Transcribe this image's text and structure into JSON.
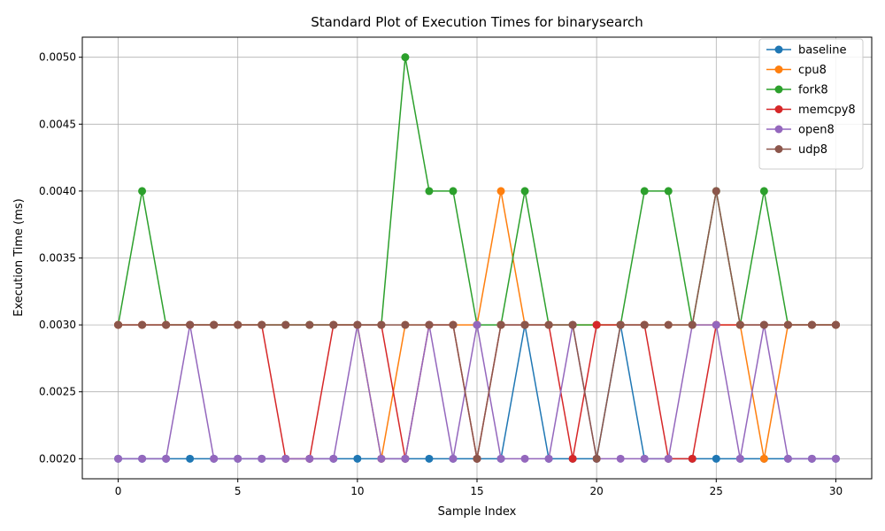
{
  "chart_data": {
    "type": "line",
    "title": "Standard Plot of Execution Times for binarysearch",
    "xlabel": "Sample Index",
    "ylabel": "Execution Time (ms)",
    "xlim": [
      -1.5,
      31.5
    ],
    "ylim": [
      0.00185,
      0.00515
    ],
    "xticks": [
      0,
      5,
      10,
      15,
      20,
      25,
      30
    ],
    "yticks": [
      0.002,
      0.0025,
      0.003,
      0.0035,
      0.004,
      0.0045,
      0.005
    ],
    "ytick_labels": [
      "0.0020",
      "0.0025",
      "0.0030",
      "0.0035",
      "0.0040",
      "0.0045",
      "0.0050"
    ],
    "grid": true,
    "legend_position": "top-right",
    "x": [
      0,
      1,
      2,
      3,
      4,
      5,
      6,
      7,
      8,
      9,
      10,
      11,
      12,
      13,
      14,
      15,
      16,
      17,
      18,
      19,
      20,
      21,
      22,
      23,
      24,
      25,
      26,
      27,
      28,
      29,
      30
    ],
    "series": [
      {
        "name": "baseline",
        "color": "#1f77b4",
        "marker": "circle",
        "values": [
          0.002,
          0.002,
          0.002,
          0.002,
          0.002,
          0.002,
          0.002,
          0.002,
          0.002,
          0.002,
          0.002,
          0.002,
          0.002,
          0.002,
          0.002,
          0.002,
          0.002,
          0.003,
          0.002,
          0.002,
          0.002,
          0.003,
          0.002,
          0.002,
          0.002,
          0.002,
          0.002,
          0.002,
          0.002,
          0.002,
          0.002
        ]
      },
      {
        "name": "cpu8",
        "color": "#ff7f0e",
        "marker": "circle",
        "values": [
          0.003,
          0.003,
          0.003,
          0.003,
          0.003,
          0.003,
          0.003,
          0.003,
          0.003,
          0.003,
          0.003,
          0.002,
          0.003,
          0.003,
          0.003,
          0.003,
          0.004,
          0.003,
          0.003,
          0.003,
          0.003,
          0.003,
          0.003,
          0.003,
          0.003,
          0.003,
          0.003,
          0.002,
          0.003,
          0.003,
          0.003
        ]
      },
      {
        "name": "fork8",
        "color": "#2ca02c",
        "marker": "circle",
        "values": [
          0.003,
          0.004,
          0.003,
          0.003,
          0.003,
          0.003,
          0.003,
          0.003,
          0.003,
          0.003,
          0.003,
          0.003,
          0.005,
          0.004,
          0.004,
          0.003,
          0.003,
          0.004,
          0.003,
          0.003,
          0.003,
          0.003,
          0.004,
          0.004,
          0.003,
          0.004,
          0.003,
          0.004,
          0.003,
          0.003,
          0.003
        ]
      },
      {
        "name": "memcpy8",
        "color": "#d62728",
        "marker": "circle",
        "values": [
          0.003,
          0.003,
          0.003,
          0.003,
          0.003,
          0.003,
          0.003,
          0.002,
          0.002,
          0.003,
          0.003,
          0.003,
          0.002,
          0.003,
          0.003,
          0.002,
          0.003,
          0.003,
          0.003,
          0.002,
          0.003,
          0.003,
          0.003,
          0.002,
          0.002,
          0.003,
          0.003,
          0.003,
          0.003,
          0.003,
          0.003
        ]
      },
      {
        "name": "open8",
        "color": "#9467bd",
        "marker": "circle",
        "values": [
          0.002,
          0.002,
          0.002,
          0.003,
          0.002,
          0.002,
          0.002,
          0.002,
          0.002,
          0.002,
          0.003,
          0.002,
          0.002,
          0.003,
          0.002,
          0.003,
          0.002,
          0.002,
          0.002,
          0.003,
          0.002,
          0.002,
          0.002,
          0.002,
          0.003,
          0.003,
          0.002,
          0.003,
          0.002,
          0.002,
          0.002
        ]
      },
      {
        "name": "udp8",
        "color": "#8c564b",
        "marker": "circle",
        "values": [
          0.003,
          0.003,
          0.003,
          0.003,
          0.003,
          0.003,
          0.003,
          0.003,
          0.003,
          0.003,
          0.003,
          0.003,
          0.003,
          0.003,
          0.003,
          0.002,
          0.003,
          0.003,
          0.003,
          0.003,
          0.002,
          0.003,
          0.003,
          0.003,
          0.003,
          0.004,
          0.003,
          0.003,
          0.003,
          0.003,
          0.003
        ]
      }
    ]
  }
}
